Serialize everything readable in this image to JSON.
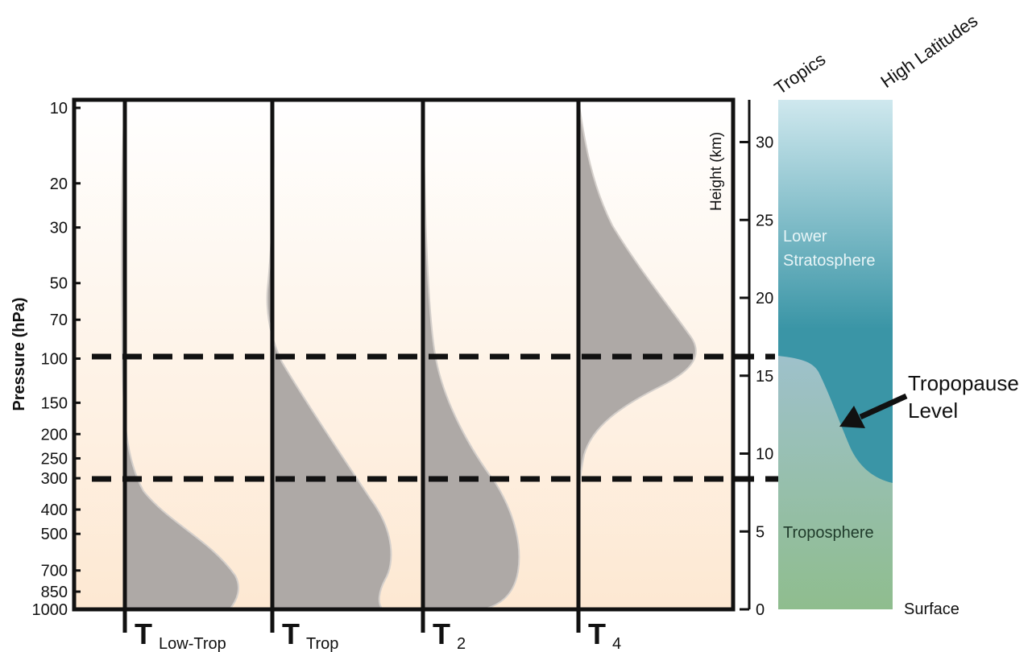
{
  "pressure_axis": {
    "title": "Pressure (hPa)",
    "ticks": [
      {
        "value": 10,
        "label": "10"
      },
      {
        "value": 20,
        "label": "20"
      },
      {
        "value": 30,
        "label": "30"
      },
      {
        "value": 50,
        "label": "50"
      },
      {
        "value": 70,
        "label": "70"
      },
      {
        "value": 100,
        "label": "100"
      },
      {
        "value": 150,
        "label": "150"
      },
      {
        "value": 200,
        "label": "200"
      },
      {
        "value": 250,
        "label": "250"
      },
      {
        "value": 300,
        "label": "300"
      },
      {
        "value": 400,
        "label": "400"
      },
      {
        "value": 500,
        "label": "500"
      },
      {
        "value": 700,
        "label": "700"
      },
      {
        "value": 850,
        "label": "850"
      },
      {
        "value": 1000,
        "label": "1000"
      }
    ]
  },
  "height_axis": {
    "title": "Height (km)",
    "ticks": [
      {
        "value": 0,
        "label": "0"
      },
      {
        "value": 5,
        "label": "5"
      },
      {
        "value": 10,
        "label": "10"
      },
      {
        "value": 15,
        "label": "15"
      },
      {
        "value": 20,
        "label": "20"
      },
      {
        "value": 25,
        "label": "25"
      },
      {
        "value": 30,
        "label": "30"
      }
    ]
  },
  "channels": [
    {
      "symbol": "T",
      "subscript": "Low-Trop",
      "name": "tlt"
    },
    {
      "symbol": "T",
      "subscript": "Trop",
      "name": "ttrop"
    },
    {
      "symbol": "T",
      "subscript": "2",
      "name": "t2"
    },
    {
      "symbol": "T",
      "subscript": "4",
      "name": "t4"
    }
  ],
  "column": {
    "left_label": "Tropics",
    "right_label": "High Latitudes",
    "stratosphere_label_line1": "Lower",
    "stratosphere_label_line2": "Stratosphere",
    "troposphere_label": "Troposphere",
    "surface_label": "Surface",
    "tropopause_label_line1": "Tropopause",
    "tropopause_label_line2": "Level"
  },
  "reference_lines_hpa": [
    100,
    300
  ],
  "colors": {
    "weighting_fill": "#aea9a6",
    "stratosphere": "#3a95a6",
    "troposphere": "#8fbd8e",
    "tropopause_zone": "#9ec1cb",
    "top_sky": "#cfe8ee"
  }
}
